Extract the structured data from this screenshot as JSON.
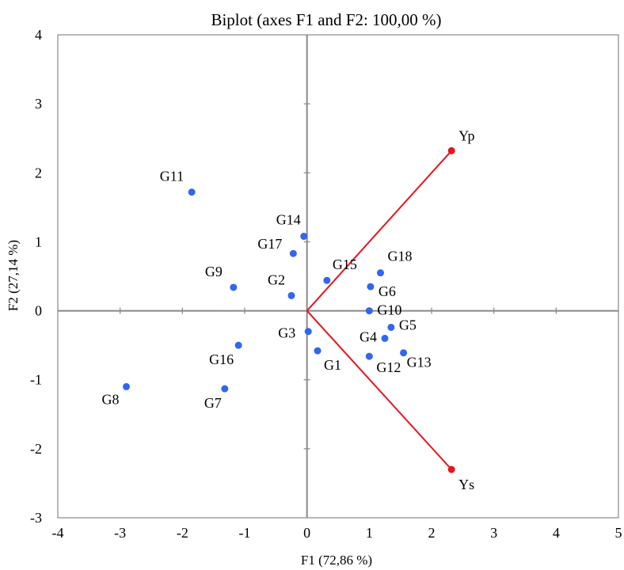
{
  "chart_data": {
    "type": "scatter",
    "title": "Biplot (axes F1 and F2: 100,00 %)",
    "xlabel": "F1 (72,86 %)",
    "ylabel": "F2 (27,14 %)",
    "xlim": [
      -4,
      5
    ],
    "ylim": [
      -3,
      4
    ],
    "x_ticks": [
      "-4",
      "-3",
      "-2",
      "-1",
      "0",
      "1",
      "2",
      "3",
      "4",
      "5"
    ],
    "y_ticks": [
      "-3",
      "-2",
      "-1",
      "0",
      "1",
      "2",
      "3",
      "4"
    ],
    "grid": false,
    "point_color": "#3366ee",
    "vector_color": "#e8141e",
    "points": [
      {
        "label": "G1",
        "x": 0.17,
        "y": -0.58
      },
      {
        "label": "G2",
        "x": -0.25,
        "y": 0.22
      },
      {
        "label": "G3",
        "x": 0.02,
        "y": -0.3
      },
      {
        "label": "G4",
        "x": 1.25,
        "y": -0.4
      },
      {
        "label": "G5",
        "x": 1.35,
        "y": -0.24
      },
      {
        "label": "G6",
        "x": 1.02,
        "y": 0.35
      },
      {
        "label": "G7",
        "x": -1.32,
        "y": -1.13
      },
      {
        "label": "G8",
        "x": -2.9,
        "y": -1.1
      },
      {
        "label": "G9",
        "x": -1.18,
        "y": 0.34
      },
      {
        "label": "G10",
        "x": 1.0,
        "y": 0.0
      },
      {
        "label": "G11",
        "x": -1.85,
        "y": 1.72
      },
      {
        "label": "G12",
        "x": 1.0,
        "y": -0.66
      },
      {
        "label": "G13",
        "x": 1.55,
        "y": -0.61
      },
      {
        "label": "G14",
        "x": -0.05,
        "y": 1.08
      },
      {
        "label": "G15",
        "x": 0.32,
        "y": 0.44
      },
      {
        "label": "G16",
        "x": -1.1,
        "y": -0.5
      },
      {
        "label": "G17",
        "x": -0.22,
        "y": 0.83
      },
      {
        "label": "G18",
        "x": 1.18,
        "y": 0.55
      }
    ],
    "vectors": [
      {
        "label": "Yp",
        "x": 2.32,
        "y": 2.32
      },
      {
        "label": "Ys",
        "x": 2.32,
        "y": -2.3
      }
    ]
  }
}
